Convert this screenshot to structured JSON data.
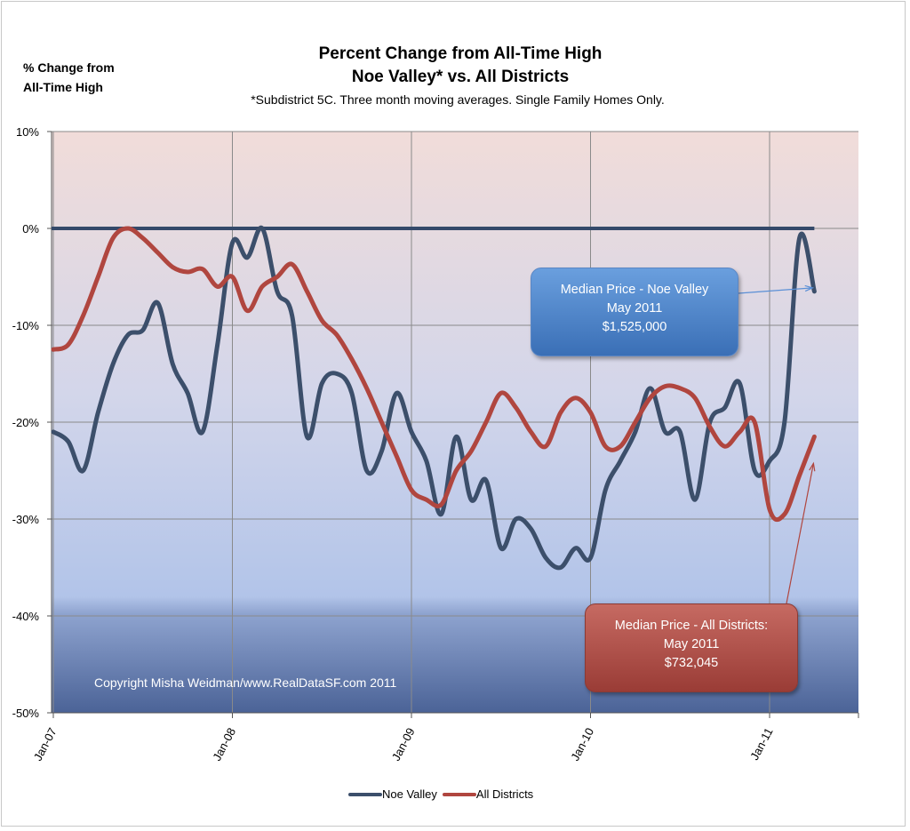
{
  "header": {
    "ylabel_line1": "% Change from",
    "ylabel_line2": "All-Time High",
    "title_line1": "Percent Change from All-Time High",
    "title_line2": "Noe Valley*  vs.  All Districts",
    "subtitle": "*Subdistrict 5C.  Three month moving averages.  Single Family Homes Only."
  },
  "callouts": {
    "noe": {
      "line1": "Median Price  - Noe Valley",
      "line2": "May 2011",
      "line3": "$1,525,000"
    },
    "all": {
      "line1": "Median Price -  All Districts:",
      "line2": "May 2011",
      "line3": "$732,045"
    }
  },
  "copyright": "Copyright Misha Weidman/www.RealDataSF.com 2011",
  "legend": {
    "series1": "Noe Valley",
    "series2": "All Districts"
  },
  "colors": {
    "noe": "#3c4f6b",
    "all": "#b0463f",
    "zero_line": "#34496a"
  },
  "chart_data": {
    "type": "line",
    "ylim": [
      -50,
      10
    ],
    "yticks": [
      10,
      0,
      -10,
      -20,
      -30,
      -40,
      -50
    ],
    "ytick_labels": [
      "10%",
      "0%",
      "-10%",
      "-20%",
      "-30%",
      "-40%",
      "-50%"
    ],
    "xtick_labels": [
      "Jan-07",
      "Jan-08",
      "Jan-09",
      "Jan-10",
      "Jan-11"
    ],
    "x_start": "Jan-07",
    "grid": true,
    "legend_position": "bottom",
    "series": [
      {
        "name": "Noe Valley",
        "values": [
          -21,
          -22,
          -25,
          -19,
          -14,
          -11,
          -10.5,
          -7.7,
          -14,
          -17,
          -21,
          -12,
          -1.5,
          -3,
          0,
          -6.5,
          -9,
          -21.5,
          -16,
          -15,
          -17,
          -25,
          -23,
          -17,
          -21,
          -24,
          -29.5,
          -21.5,
          -28,
          -26,
          -33,
          -30,
          -31,
          -34,
          -35,
          -33,
          -34,
          -27,
          -24,
          -21,
          -16.5,
          -21,
          -21,
          -28,
          -20,
          -18.5,
          -16,
          -25,
          -24,
          -20,
          -1,
          -6.5
        ]
      },
      {
        "name": "All Districts",
        "values": [
          -12.5,
          -12,
          -9,
          -5,
          -1,
          0,
          -1,
          -2.5,
          -4,
          -4.5,
          -4.2,
          -6,
          -5,
          -8.5,
          -6,
          -5,
          -3.7,
          -6.5,
          -9.5,
          -11,
          -13.5,
          -16.5,
          -20,
          -23.5,
          -27,
          -28,
          -28.5,
          -25,
          -23,
          -20,
          -17,
          -18.5,
          -21,
          -22.5,
          -19,
          -17.5,
          -19,
          -22.5,
          -22.5,
          -20,
          -17.5,
          -16.3,
          -16.5,
          -17.5,
          -20.5,
          -22.5,
          -21,
          -20,
          -29,
          -29.5,
          -25.5,
          -21.5
        ]
      }
    ],
    "zero_reference": {
      "name": "All-time high",
      "value": 0
    }
  }
}
